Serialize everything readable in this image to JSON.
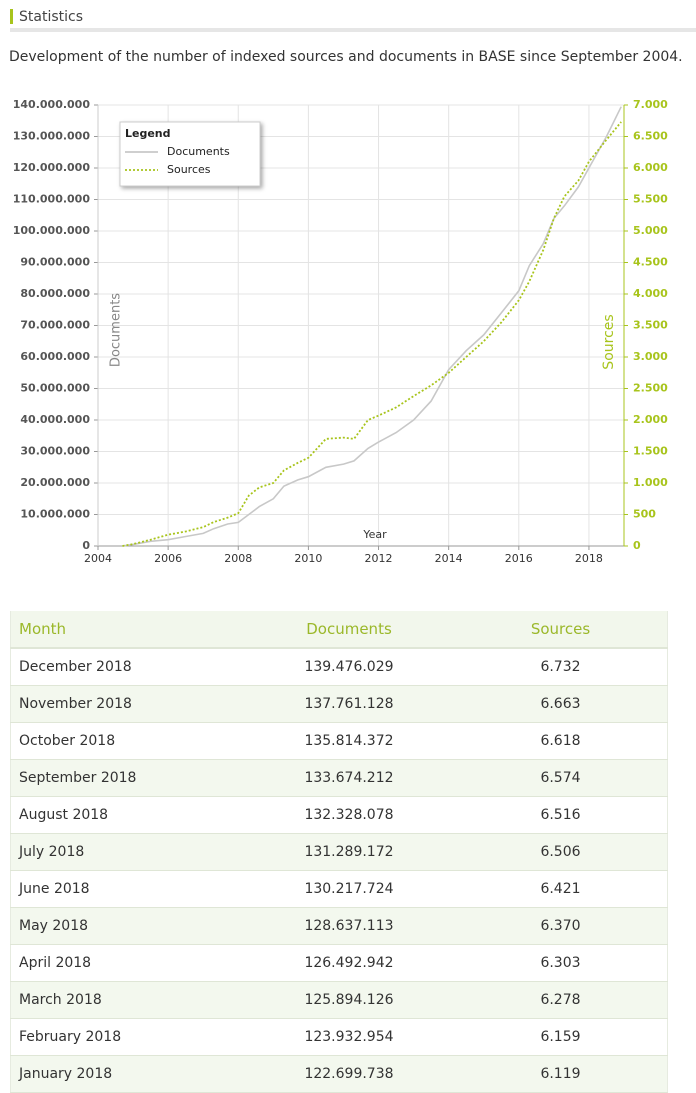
{
  "header": {
    "title": "Statistics"
  },
  "description": "Development of the number of indexed sources and documents in BASE since September 2004.",
  "chart_data": {
    "type": "line",
    "legend_title": "Legend",
    "xlabel": "Year",
    "ylabel": "Documents",
    "y2label": "Sources",
    "x": [
      2004.7,
      2005,
      2005.5,
      2006,
      2006.5,
      2007,
      2007.3,
      2007.7,
      2008,
      2008.3,
      2008.6,
      2009,
      2009.3,
      2009.7,
      2010,
      2010.5,
      2011,
      2011.3,
      2011.7,
      2012,
      2012.5,
      2013,
      2013.5,
      2014,
      2014.5,
      2015,
      2015.5,
      2016,
      2016.3,
      2016.7,
      2017,
      2017.3,
      2017.7,
      2018,
      2018.5,
      2018.92
    ],
    "series": [
      {
        "name": "Documents",
        "color": "#c8c8c8",
        "axis": "y",
        "values": [
          0,
          500000,
          1500000,
          2000000,
          3000000,
          4000000,
          5500000,
          7000000,
          7500000,
          10000000,
          12500000,
          15000000,
          19000000,
          21000000,
          22000000,
          25000000,
          26000000,
          27000000,
          31000000,
          33000000,
          36000000,
          40000000,
          46000000,
          56000000,
          62000000,
          67000000,
          74000000,
          81000000,
          89000000,
          96000000,
          104000000,
          108000000,
          114000000,
          120000000,
          130000000,
          139476029
        ]
      },
      {
        "name": "Sources",
        "color": "#a8c41c",
        "axis": "y2",
        "values": [
          0,
          30,
          100,
          180,
          230,
          300,
          380,
          450,
          520,
          800,
          930,
          1000,
          1200,
          1320,
          1400,
          1700,
          1720,
          1700,
          2000,
          2070,
          2200,
          2380,
          2550,
          2750,
          3000,
          3250,
          3550,
          3900,
          4200,
          4700,
          5200,
          5550,
          5800,
          6100,
          6450,
          6732
        ]
      }
    ],
    "xlim": [
      2004,
      2019
    ],
    "xticks": [
      2004,
      2006,
      2008,
      2010,
      2012,
      2014,
      2016,
      2018
    ],
    "ylim": [
      0,
      140000000
    ],
    "yticks": [
      0,
      {
        "value": 10000000,
        "label": "10.000.000"
      },
      {
        "value": 20000000,
        "label": "20.000.000"
      },
      {
        "value": 30000000,
        "label": "30.000.000"
      },
      {
        "value": 40000000,
        "label": "40.000.000"
      },
      {
        "value": 50000000,
        "label": "50.000.000"
      },
      {
        "value": 60000000,
        "label": "60.000.000"
      },
      {
        "value": 70000000,
        "label": "70.000.000"
      },
      {
        "value": 80000000,
        "label": "80.000.000"
      },
      {
        "value": 90000000,
        "label": "90.000.000"
      },
      {
        "value": 100000000,
        "label": "100.000.000"
      },
      {
        "value": 110000000,
        "label": "110.000.000"
      },
      {
        "value": 120000000,
        "label": "120.000.000"
      },
      {
        "value": 130000000,
        "label": "130.000.000"
      },
      {
        "value": 140000000,
        "label": "140.000.000"
      }
    ],
    "y2lim": [
      0,
      7000
    ],
    "y2ticks": [
      0,
      500,
      {
        "value": 1000,
        "label": "1.000"
      },
      {
        "value": 1500,
        "label": "1.500"
      },
      {
        "value": 2000,
        "label": "2.000"
      },
      {
        "value": 2500,
        "label": "2.500"
      },
      {
        "value": 3000,
        "label": "3.000"
      },
      {
        "value": 3500,
        "label": "3.500"
      },
      {
        "value": 4000,
        "label": "4.000"
      },
      {
        "value": 4500,
        "label": "4.500"
      },
      {
        "value": 5000,
        "label": "5.000"
      },
      {
        "value": 5500,
        "label": "5.500"
      },
      {
        "value": 6000,
        "label": "6.000"
      },
      {
        "value": 6500,
        "label": "6.500"
      },
      {
        "value": 7000,
        "label": "7.000"
      }
    ],
    "grid": true
  },
  "table": {
    "columns": [
      "Month",
      "Documents",
      "Sources"
    ],
    "rows": [
      [
        "December 2018",
        "139.476.029",
        "6.732"
      ],
      [
        "November 2018",
        "137.761.128",
        "6.663"
      ],
      [
        "October 2018",
        "135.814.372",
        "6.618"
      ],
      [
        "September 2018",
        "133.674.212",
        "6.574"
      ],
      [
        "August 2018",
        "132.328.078",
        "6.516"
      ],
      [
        "July 2018",
        "131.289.172",
        "6.506"
      ],
      [
        "June 2018",
        "130.217.724",
        "6.421"
      ],
      [
        "May 2018",
        "128.637.113",
        "6.370"
      ],
      [
        "April 2018",
        "126.492.942",
        "6.303"
      ],
      [
        "March 2018",
        "125.894.126",
        "6.278"
      ],
      [
        "February 2018",
        "123.932.954",
        "6.159"
      ],
      [
        "January 2018",
        "122.699.738",
        "6.119"
      ]
    ]
  }
}
